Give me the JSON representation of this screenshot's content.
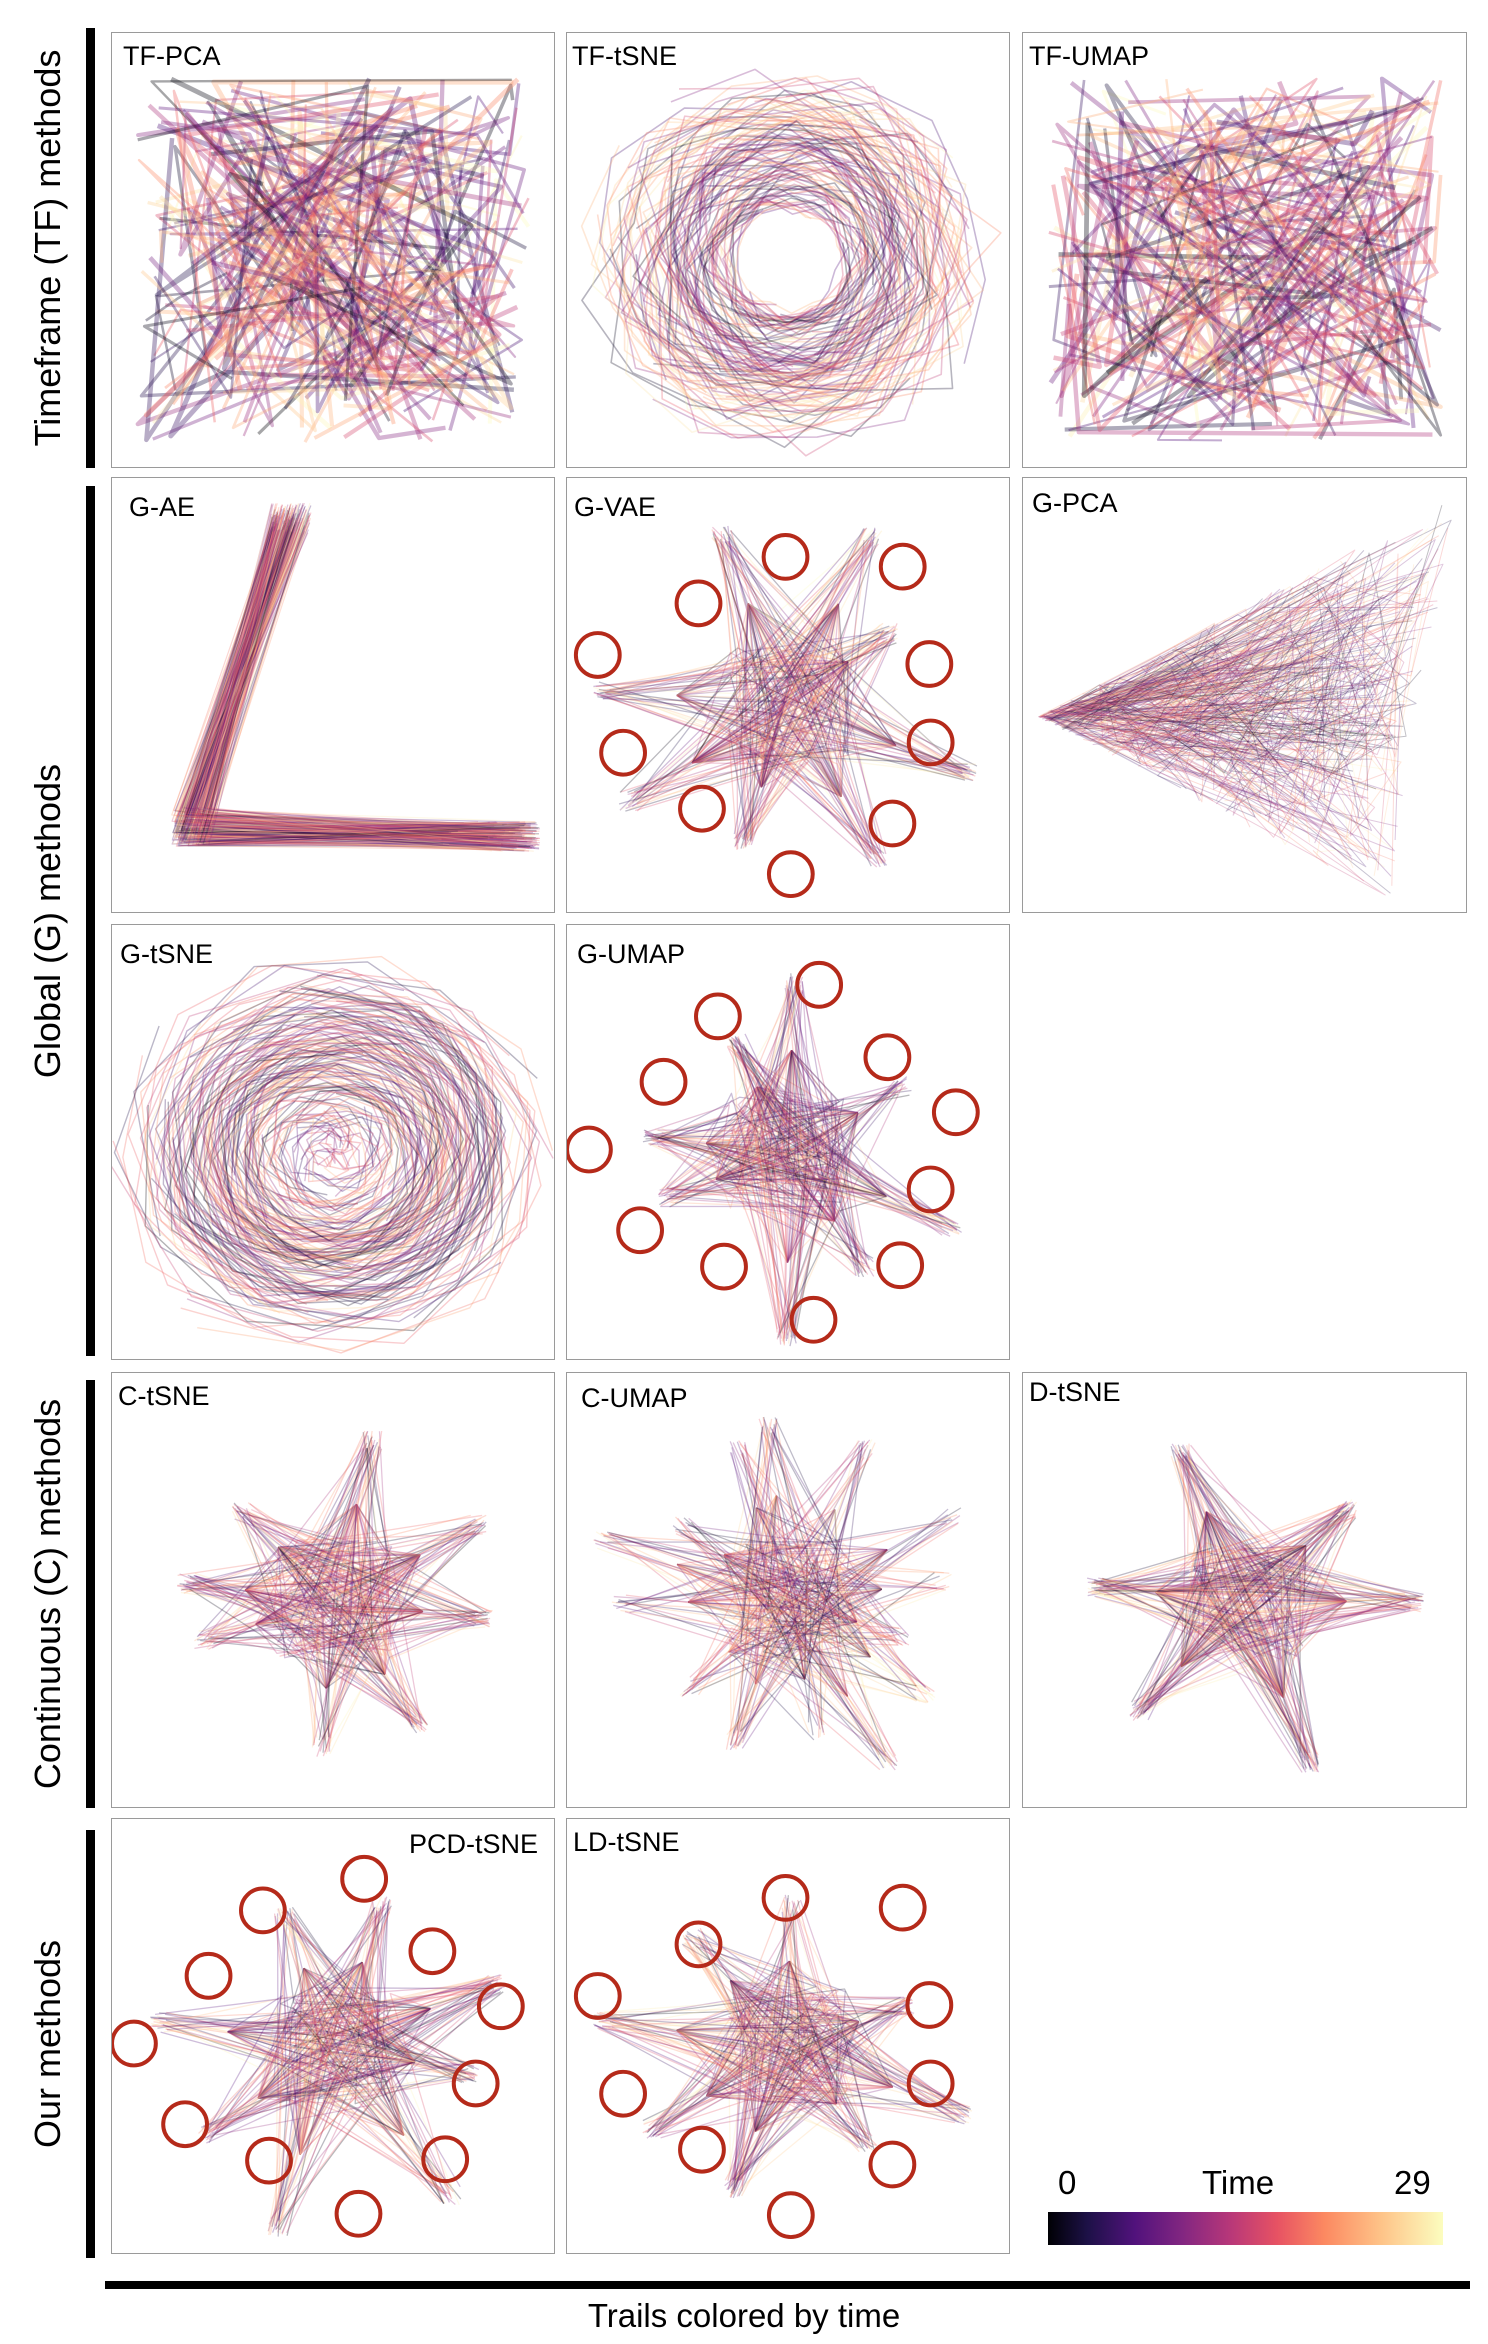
{
  "groups": [
    {
      "id": "tf",
      "label": "Timeframe (TF) methods"
    },
    {
      "id": "g",
      "label": "Global (G) methods"
    },
    {
      "id": "c",
      "label": "Continuous (C) methods"
    },
    {
      "id": "ours",
      "label": "Our methods"
    }
  ],
  "panels": [
    {
      "id": "tf-pca",
      "label": "TF-PCA",
      "style": "tf-lines",
      "markers": 0
    },
    {
      "id": "tf-tsne",
      "label": "TF-tSNE",
      "style": "tf-blob",
      "markers": 0
    },
    {
      "id": "tf-umap",
      "label": "TF-UMAP",
      "style": "tf-lines",
      "markers": 0
    },
    {
      "id": "g-ae",
      "label": "G-AE",
      "style": "fan-ae",
      "markers": 0
    },
    {
      "id": "g-vae",
      "label": "G-VAE",
      "style": "star",
      "markers": 10
    },
    {
      "id": "g-pca",
      "label": "G-PCA",
      "style": "triangle",
      "markers": 0
    },
    {
      "id": "g-tsne",
      "label": "G-tSNE",
      "style": "swirl",
      "markers": 0
    },
    {
      "id": "g-umap",
      "label": "G-UMAP",
      "style": "star",
      "markers": 11
    },
    {
      "id": "c-tsne",
      "label": "C-tSNE",
      "style": "star",
      "markers": 0
    },
    {
      "id": "c-umap",
      "label": "C-UMAP",
      "style": "spiky",
      "markers": 0
    },
    {
      "id": "d-tsne",
      "label": "D-tSNE",
      "style": "twin",
      "markers": 0
    },
    {
      "id": "pcd-tsne",
      "label": "PCD-tSNE",
      "style": "star",
      "markers": 11
    },
    {
      "id": "ld-tsne",
      "label": "LD-tSNE",
      "style": "star",
      "markers": 10
    }
  ],
  "colorbar": {
    "min": "0",
    "max": "29",
    "title": "Time",
    "colormap": [
      "#000004",
      "#1d1147",
      "#51127c",
      "#822681",
      "#b73779",
      "#e75263",
      "#fc8961",
      "#fec287",
      "#fcfdbf"
    ]
  },
  "marker_color": "#b52a1a",
  "caption": "Trails colored by time"
}
